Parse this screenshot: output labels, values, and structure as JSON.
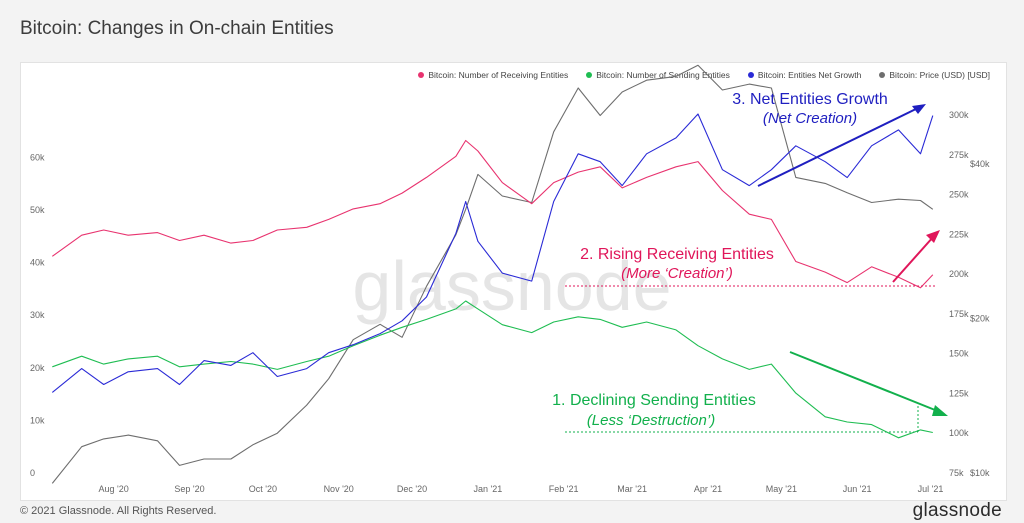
{
  "page": {
    "title": "Bitcoin: Changes in On-chain Entities",
    "copyright": "© 2021 Glassnode. All Rights Reserved.",
    "logo": "glassnode",
    "watermark": "glassnode"
  },
  "colors": {
    "receiving": "#e8336f",
    "sending": "#1fbd52",
    "net": "#2a2ad6",
    "price": "#6e6e6e",
    "ann_blue": "#1f1fc0",
    "ann_pink": "#e0165a",
    "ann_green": "#12b04c"
  },
  "chart_data": {
    "type": "line",
    "legend": [
      {
        "label": "Bitcoin: Number of Receiving Entities",
        "color": "#e8336f"
      },
      {
        "label": "Bitcoin: Number of Sending Entities",
        "color": "#1fbd52"
      },
      {
        "label": "Bitcoin: Entities Net Growth",
        "color": "#2a2ad6"
      },
      {
        "label": "Bitcoin: Price (USD) [USD]",
        "color": "#6e6e6e"
      }
    ],
    "x_labels": [
      "Aug '20",
      "Sep '20",
      "Oct '20",
      "Nov '20",
      "Dec '20",
      "Jan '21",
      "Feb '21",
      "Mar '21",
      "Apr '21",
      "May '21",
      "Jun '21",
      "Jul '21"
    ],
    "x_tick_dates": [
      "2020-08-01",
      "2020-09-01",
      "2020-10-01",
      "2020-11-01",
      "2020-12-01",
      "2021-01-01",
      "2021-02-01",
      "2021-03-01",
      "2021-04-01",
      "2021-05-01",
      "2021-06-01",
      "2021-07-01"
    ],
    "left_axis": {
      "ticks": [
        "0",
        "10k",
        "20k",
        "30k",
        "40k",
        "50k",
        "60k"
      ],
      "range": [
        0,
        65000
      ]
    },
    "right_axis_inner": {
      "ticks": [
        "75k",
        "100k",
        "125k",
        "150k",
        "175k",
        "200k",
        "225k",
        "250k",
        "275k",
        "300k"
      ],
      "range": [
        75000,
        300000
      ]
    },
    "right_axis_outer": {
      "ticks": [
        "$10k",
        "$20k",
        "$40k"
      ],
      "values": [
        10000,
        20000,
        40000
      ],
      "scale": "log"
    },
    "series": [
      {
        "name": "Bitcoin: Number of Receiving Entities",
        "axis": "left",
        "x": [
          "2020-07-20",
          "2020-08-01",
          "2020-08-10",
          "2020-08-20",
          "2020-09-01",
          "2020-09-10",
          "2020-09-20",
          "2020-10-01",
          "2020-10-10",
          "2020-10-20",
          "2020-11-01",
          "2020-11-10",
          "2020-11-20",
          "2020-12-01",
          "2020-12-10",
          "2020-12-20",
          "2021-01-01",
          "2021-01-05",
          "2021-01-10",
          "2021-01-20",
          "2021-02-01",
          "2021-02-10",
          "2021-02-20",
          "2021-03-01",
          "2021-03-10",
          "2021-03-20",
          "2021-04-01",
          "2021-04-10",
          "2021-04-20",
          "2021-05-01",
          "2021-05-10",
          "2021-05-20",
          "2021-06-01",
          "2021-06-10",
          "2021-06-20",
          "2021-07-01",
          "2021-07-10",
          "2021-07-15"
        ],
        "y": [
          41000,
          45000,
          46000,
          45000,
          45500,
          44000,
          45000,
          43500,
          44000,
          46000,
          46500,
          48000,
          50000,
          51000,
          53000,
          56000,
          60000,
          63000,
          61000,
          55000,
          51000,
          55000,
          57000,
          58000,
          54000,
          56000,
          58000,
          59000,
          53500,
          49000,
          48000,
          40000,
          38000,
          36000,
          39000,
          37000,
          35000,
          37500
        ]
      },
      {
        "name": "Bitcoin: Number of Sending Entities",
        "axis": "left",
        "x": [
          "2020-07-20",
          "2020-08-01",
          "2020-08-10",
          "2020-08-20",
          "2020-09-01",
          "2020-09-10",
          "2020-09-20",
          "2020-10-01",
          "2020-10-10",
          "2020-10-20",
          "2020-11-01",
          "2020-11-10",
          "2020-11-20",
          "2020-12-01",
          "2020-12-10",
          "2020-12-20",
          "2021-01-01",
          "2021-01-05",
          "2021-01-10",
          "2021-01-20",
          "2021-02-01",
          "2021-02-10",
          "2021-02-20",
          "2021-03-01",
          "2021-03-10",
          "2021-03-20",
          "2021-04-01",
          "2021-04-10",
          "2021-04-20",
          "2021-05-01",
          "2021-05-10",
          "2021-05-20",
          "2021-06-01",
          "2021-06-10",
          "2021-06-20",
          "2021-07-01",
          "2021-07-10",
          "2021-07-15"
        ],
        "y": [
          20000,
          22000,
          20500,
          21500,
          22000,
          20000,
          20500,
          21000,
          20500,
          19500,
          21000,
          22000,
          24000,
          26000,
          27500,
          29000,
          31000,
          32500,
          31000,
          28000,
          26500,
          28500,
          29500,
          29000,
          27500,
          28500,
          27000,
          24000,
          21500,
          19500,
          20500,
          15000,
          10500,
          9500,
          9000,
          6500,
          8000,
          7500
        ]
      },
      {
        "name": "Bitcoin: Entities Net Growth",
        "axis": "right_inner",
        "x": [
          "2020-07-20",
          "2020-08-01",
          "2020-08-10",
          "2020-08-20",
          "2020-09-01",
          "2020-09-10",
          "2020-09-20",
          "2020-10-01",
          "2020-10-10",
          "2020-10-20",
          "2020-11-01",
          "2020-11-10",
          "2020-11-20",
          "2020-12-01",
          "2020-12-10",
          "2020-12-20",
          "2021-01-01",
          "2021-01-05",
          "2021-01-10",
          "2021-01-20",
          "2021-02-01",
          "2021-02-10",
          "2021-02-20",
          "2021-03-01",
          "2021-03-10",
          "2021-03-20",
          "2021-04-01",
          "2021-04-10",
          "2021-04-20",
          "2021-05-01",
          "2021-05-10",
          "2021-05-20",
          "2021-06-01",
          "2021-06-10",
          "2021-06-20",
          "2021-07-01",
          "2021-07-10",
          "2021-07-15"
        ],
        "y": [
          125000,
          140000,
          130000,
          138000,
          140000,
          130000,
          145000,
          142000,
          150000,
          135000,
          140000,
          150000,
          155000,
          162000,
          170000,
          185000,
          225000,
          245000,
          220000,
          200000,
          195000,
          245000,
          275000,
          270000,
          255000,
          275000,
          285000,
          300000,
          265000,
          255000,
          265000,
          280000,
          270000,
          260000,
          280000,
          290000,
          275000,
          299000
        ]
      },
      {
        "name": "Bitcoin: Price (USD) [USD]",
        "axis": "right_outer",
        "x": [
          "2020-07-20",
          "2020-08-01",
          "2020-08-10",
          "2020-08-20",
          "2020-09-01",
          "2020-09-10",
          "2020-09-20",
          "2020-10-01",
          "2020-10-10",
          "2020-10-20",
          "2020-11-01",
          "2020-11-10",
          "2020-11-20",
          "2020-12-01",
          "2020-12-10",
          "2020-12-20",
          "2021-01-01",
          "2021-01-05",
          "2021-01-10",
          "2021-01-20",
          "2021-02-01",
          "2021-02-10",
          "2021-02-20",
          "2021-03-01",
          "2021-03-10",
          "2021-03-20",
          "2021-04-01",
          "2021-04-10",
          "2021-04-20",
          "2021-05-01",
          "2021-05-10",
          "2021-05-20",
          "2021-06-01",
          "2021-06-10",
          "2021-06-20",
          "2021-07-01",
          "2021-07-10",
          "2021-07-15"
        ],
        "y": [
          9500,
          11200,
          11600,
          11800,
          11500,
          10300,
          10600,
          10600,
          11300,
          11900,
          13500,
          15200,
          18100,
          19400,
          18300,
          23000,
          29000,
          32500,
          38000,
          34500,
          33500,
          46000,
          56000,
          49500,
          55000,
          58000,
          59000,
          62000,
          55500,
          57000,
          56000,
          37500,
          36500,
          35000,
          33500,
          34000,
          33800,
          32500
        ]
      }
    ]
  },
  "annotations": [
    {
      "id": "net",
      "title": "3. Net Entities Growth",
      "subtitle": "(Net Creation)",
      "color": "#1f1fc0"
    },
    {
      "id": "receiving",
      "title": "2. Rising Receiving Entities",
      "subtitle": "(More ‘Creation’)",
      "color": "#e0165a"
    },
    {
      "id": "sending",
      "title": "1. Declining Sending Entities",
      "subtitle": "(Less ‘Destruction’)",
      "color": "#12b04c"
    }
  ]
}
